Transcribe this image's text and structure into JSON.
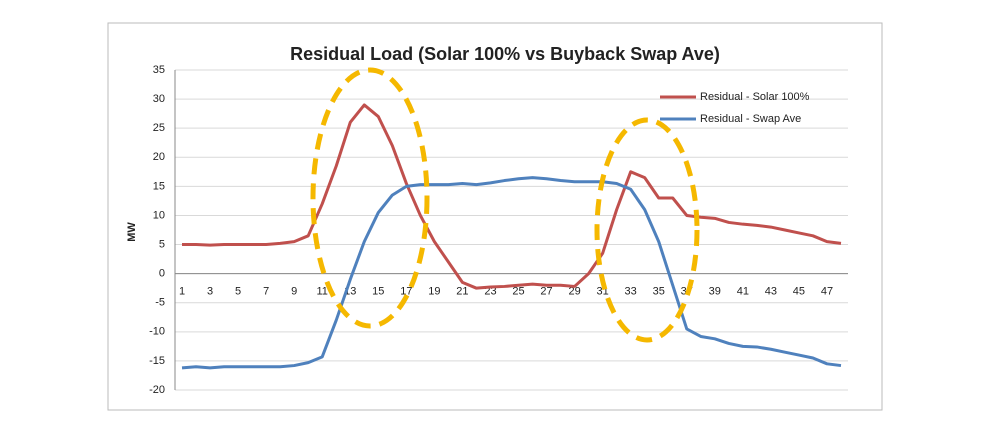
{
  "chart_data": {
    "type": "line",
    "title": "Residual Load (Solar 100% vs Buyback Swap Ave)",
    "y_label": "MW",
    "categories": [
      1,
      null,
      3,
      null,
      5,
      null,
      7,
      null,
      9,
      null,
      11,
      null,
      13,
      null,
      15,
      null,
      17,
      null,
      19,
      null,
      21,
      null,
      23,
      null,
      25,
      null,
      27,
      null,
      29,
      null,
      31,
      null,
      33,
      null,
      35,
      null,
      37,
      null,
      39,
      null,
      41,
      null,
      43,
      null,
      45,
      null,
      47,
      null
    ],
    "series": [
      {
        "name": "Residual - Solar 100%",
        "color": "#c0504d",
        "values": [
          5,
          5,
          4.9,
          5,
          5,
          5,
          5,
          5.2,
          5.5,
          6.5,
          12,
          18.5,
          26,
          29,
          27,
          22,
          15.5,
          10,
          5.5,
          2,
          -1.5,
          -2.5,
          -2.3,
          -2.2,
          -2,
          -1.8,
          -2,
          -2,
          -2.2,
          0,
          3.5,
          11,
          17.5,
          16.5,
          13,
          13,
          10,
          9.7,
          9.5,
          8.8,
          8.5,
          8.3,
          8,
          7.5,
          7,
          6.5,
          5.5,
          5.2
        ]
      },
      {
        "name": "Residual - Swap Ave",
        "color": "#4f81bd",
        "values": [
          -16.2,
          -16,
          -16.2,
          -16,
          -16,
          -16,
          -16,
          -16,
          -15.8,
          -15.3,
          -14.3,
          -8,
          -1,
          5.5,
          10.5,
          13.5,
          15,
          15.3,
          15.3,
          15.3,
          15.5,
          15.3,
          15.6,
          16,
          16.3,
          16.5,
          16.3,
          16,
          15.8,
          15.8,
          15.8,
          15.5,
          14.5,
          11,
          5.5,
          -2,
          -9.5,
          -10.8,
          -11.2,
          -12,
          -12.5,
          -12.6,
          -13,
          -13.5,
          -14,
          -14.5,
          -15.5,
          -15.8
        ]
      }
    ],
    "ylim": [
      -20,
      35
    ],
    "yticks": [
      -20,
      -15,
      -10,
      -5,
      0,
      5,
      10,
      15,
      20,
      25,
      30,
      35
    ],
    "grid": true,
    "legend": "upper right"
  }
}
